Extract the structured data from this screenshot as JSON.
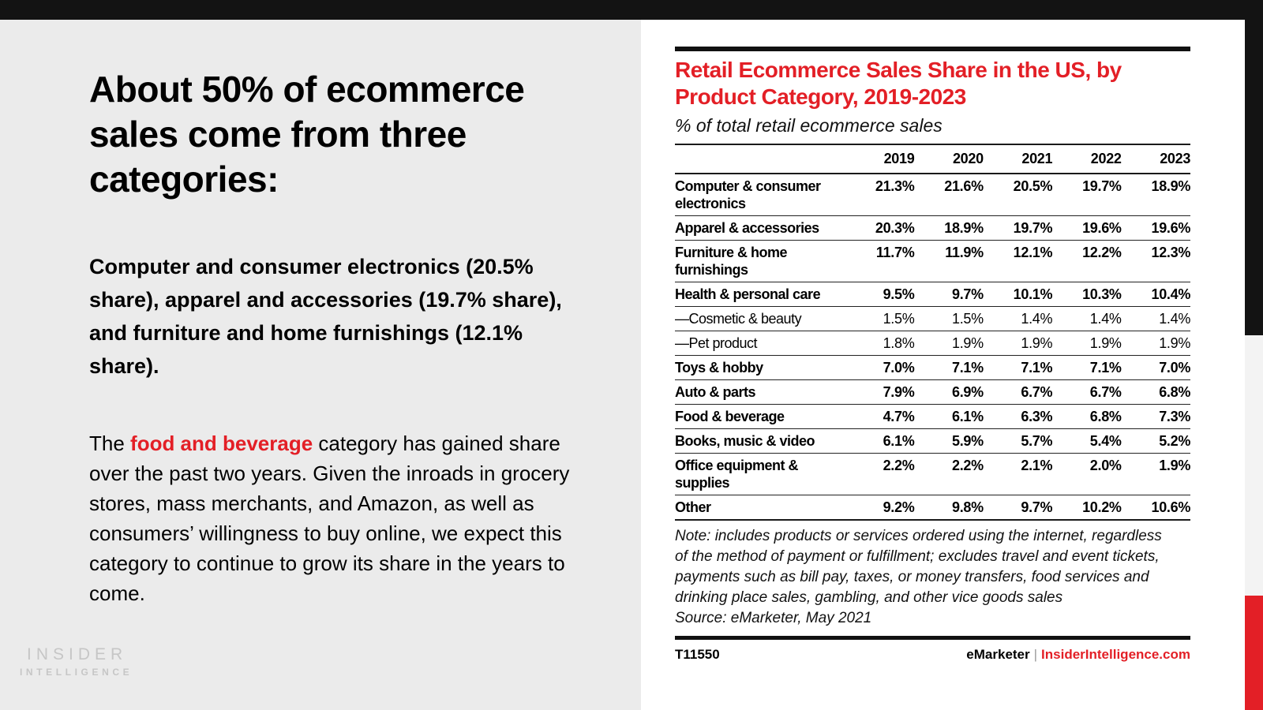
{
  "colors": {
    "accent_red": "#e31f26",
    "top_bar_black": "#131313",
    "left_panel_gray": "#ebebeb",
    "side_strip_gray": "#f3f3f3",
    "logo_gray": "#c6c6c6"
  },
  "left_panel": {
    "heading": "About 50% of ecommerce sales come from three categories:",
    "para1": "Computer and consumer electronics (20.5% share), apparel and accessories (19.7% share), and furniture and home furnishings (12.1% share).",
    "para2_pre": "The ",
    "para2_highlight": "food and beverage",
    "para2_post": " category has gained share over the past two years. Given the inroads in grocery stores, mass merchants, and Amazon, as well as consumers’ willingness to buy online, we expect this category to continue to grow its share in the years to come.",
    "logo_line1": "INSIDER",
    "logo_line2": "INTELLIGENCE"
  },
  "chart": {
    "title": "Retail Ecommerce Sales Share in the US, by Product Category, 2019-2023",
    "subtitle": "% of total retail ecommerce sales",
    "note": "Note: includes products or services ordered using the internet, regardless of the method of payment or fulfillment; excludes travel and event tickets, payments such as bill pay, taxes, or money transfers, food services and drinking place sales, gambling, and other vice goods sales",
    "source": "Source: eMarketer, May 2021",
    "footer_id": "T11550",
    "footer_brand": "eMarketer",
    "footer_sep": "|",
    "footer_site": "InsiderIntelligence.com"
  },
  "chart_data": {
    "type": "table",
    "title": "Retail Ecommerce Sales Share in the US, by Product Category, 2019-2023",
    "subtitle": "% of total retail ecommerce sales",
    "columns": [
      "2019",
      "2020",
      "2021",
      "2022",
      "2023"
    ],
    "rows": [
      {
        "label": "Computer & consumer electronics",
        "sub": false,
        "values": [
          "21.3%",
          "21.6%",
          "20.5%",
          "19.7%",
          "18.9%"
        ]
      },
      {
        "label": "Apparel & accessories",
        "sub": false,
        "values": [
          "20.3%",
          "18.9%",
          "19.7%",
          "19.6%",
          "19.6%"
        ]
      },
      {
        "label": "Furniture & home furnishings",
        "sub": false,
        "values": [
          "11.7%",
          "11.9%",
          "12.1%",
          "12.2%",
          "12.3%"
        ]
      },
      {
        "label": "Health & personal care",
        "sub": false,
        "values": [
          "9.5%",
          "9.7%",
          "10.1%",
          "10.3%",
          "10.4%"
        ]
      },
      {
        "label": "—Cosmetic & beauty",
        "sub": true,
        "values": [
          "1.5%",
          "1.5%",
          "1.4%",
          "1.4%",
          "1.4%"
        ]
      },
      {
        "label": "—Pet product",
        "sub": true,
        "values": [
          "1.8%",
          "1.9%",
          "1.9%",
          "1.9%",
          "1.9%"
        ]
      },
      {
        "label": "Toys & hobby",
        "sub": false,
        "values": [
          "7.0%",
          "7.1%",
          "7.1%",
          "7.1%",
          "7.0%"
        ]
      },
      {
        "label": "Auto & parts",
        "sub": false,
        "values": [
          "7.9%",
          "6.9%",
          "6.7%",
          "6.7%",
          "6.8%"
        ]
      },
      {
        "label": "Food & beverage",
        "sub": false,
        "values": [
          "4.7%",
          "6.1%",
          "6.3%",
          "6.8%",
          "7.3%"
        ]
      },
      {
        "label": "Books, music & video",
        "sub": false,
        "values": [
          "6.1%",
          "5.9%",
          "5.7%",
          "5.4%",
          "5.2%"
        ]
      },
      {
        "label": "Office equipment & supplies",
        "sub": false,
        "values": [
          "2.2%",
          "2.2%",
          "2.1%",
          "2.0%",
          "1.9%"
        ]
      },
      {
        "label": "Other",
        "sub": false,
        "values": [
          "9.2%",
          "9.8%",
          "9.7%",
          "10.2%",
          "10.6%"
        ]
      }
    ]
  }
}
